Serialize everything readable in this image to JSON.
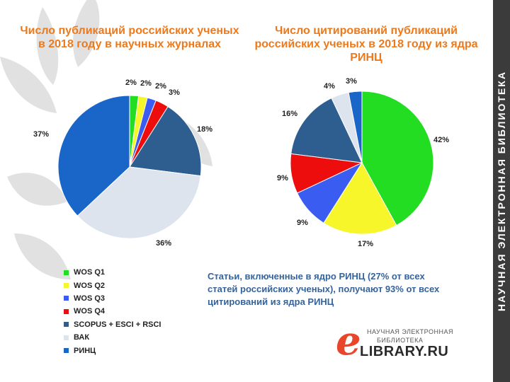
{
  "sidebar": {
    "text": "НАУЧНАЯ ЭЛЕКТРОННАЯ БИБЛИОТЕКА",
    "color": "#3b3b3b"
  },
  "note": "Статьи, включенные в ядро РИНЦ (27% от всех статей российских ученых), получают 93% от всех цитирований из ядра РИНЦ",
  "logo": {
    "line1": "НАУЧНАЯ ЭЛЕКТРОННАЯ",
    "line2": "БИБЛИОТЕКА",
    "name": "eLIBRARY.RU",
    "letter": "e",
    "letters_rest": "LIBRARY.RU"
  },
  "legend": [
    {
      "label": "WOS Q1",
      "color": "#22dd22"
    },
    {
      "label": "WOS Q2",
      "color": "#f6f62a"
    },
    {
      "label": "WOS Q3",
      "color": "#3b5cf0"
    },
    {
      "label": "WOS Q4",
      "color": "#ee0d0d"
    },
    {
      "label": "SCOPUS + ESCI + RSCI",
      "color": "#2e5d8f"
    },
    {
      "label": "ВАК",
      "color": "#dde4ee"
    },
    {
      "label": "РИНЦ",
      "color": "#1a66c8"
    }
  ],
  "chart_data": [
    {
      "type": "pie",
      "title": "Число публикаций российских ученых в 2018 году в научных журналах",
      "categories": [
        "WOS Q1",
        "WOS Q2",
        "WOS Q3",
        "WOS Q4",
        "SCOPUS + ESCI + RSCI",
        "ВАК",
        "РИНЦ"
      ],
      "values": [
        2,
        2,
        2,
        3,
        18,
        36,
        37
      ],
      "labels": [
        "2%",
        "2%",
        "2%",
        "3%",
        "18%",
        "36%",
        "37%"
      ],
      "colors": [
        "#22dd22",
        "#f6f62a",
        "#3b5cf0",
        "#ee0d0d",
        "#2e5d8f",
        "#dde4ee",
        "#1a66c8"
      ],
      "legend": "bottom-left"
    },
    {
      "type": "pie",
      "title": "Число цитирований публикаций российских ученых в 2018 году из ядра РИНЦ",
      "categories": [
        "WOS Q1",
        "WOS Q2",
        "WOS Q3",
        "WOS Q4",
        "SCOPUS + ESCI + RSCI",
        "ВАК",
        "РИНЦ"
      ],
      "values": [
        42,
        17,
        9,
        9,
        16,
        4,
        3
      ],
      "labels": [
        "42%",
        "17%",
        "9%",
        "9%",
        "16%",
        "4%",
        "3%"
      ],
      "colors": [
        "#22dd22",
        "#f6f62a",
        "#3b5cf0",
        "#ee0d0d",
        "#2e5d8f",
        "#dde4ee",
        "#1a66c8"
      ]
    }
  ]
}
